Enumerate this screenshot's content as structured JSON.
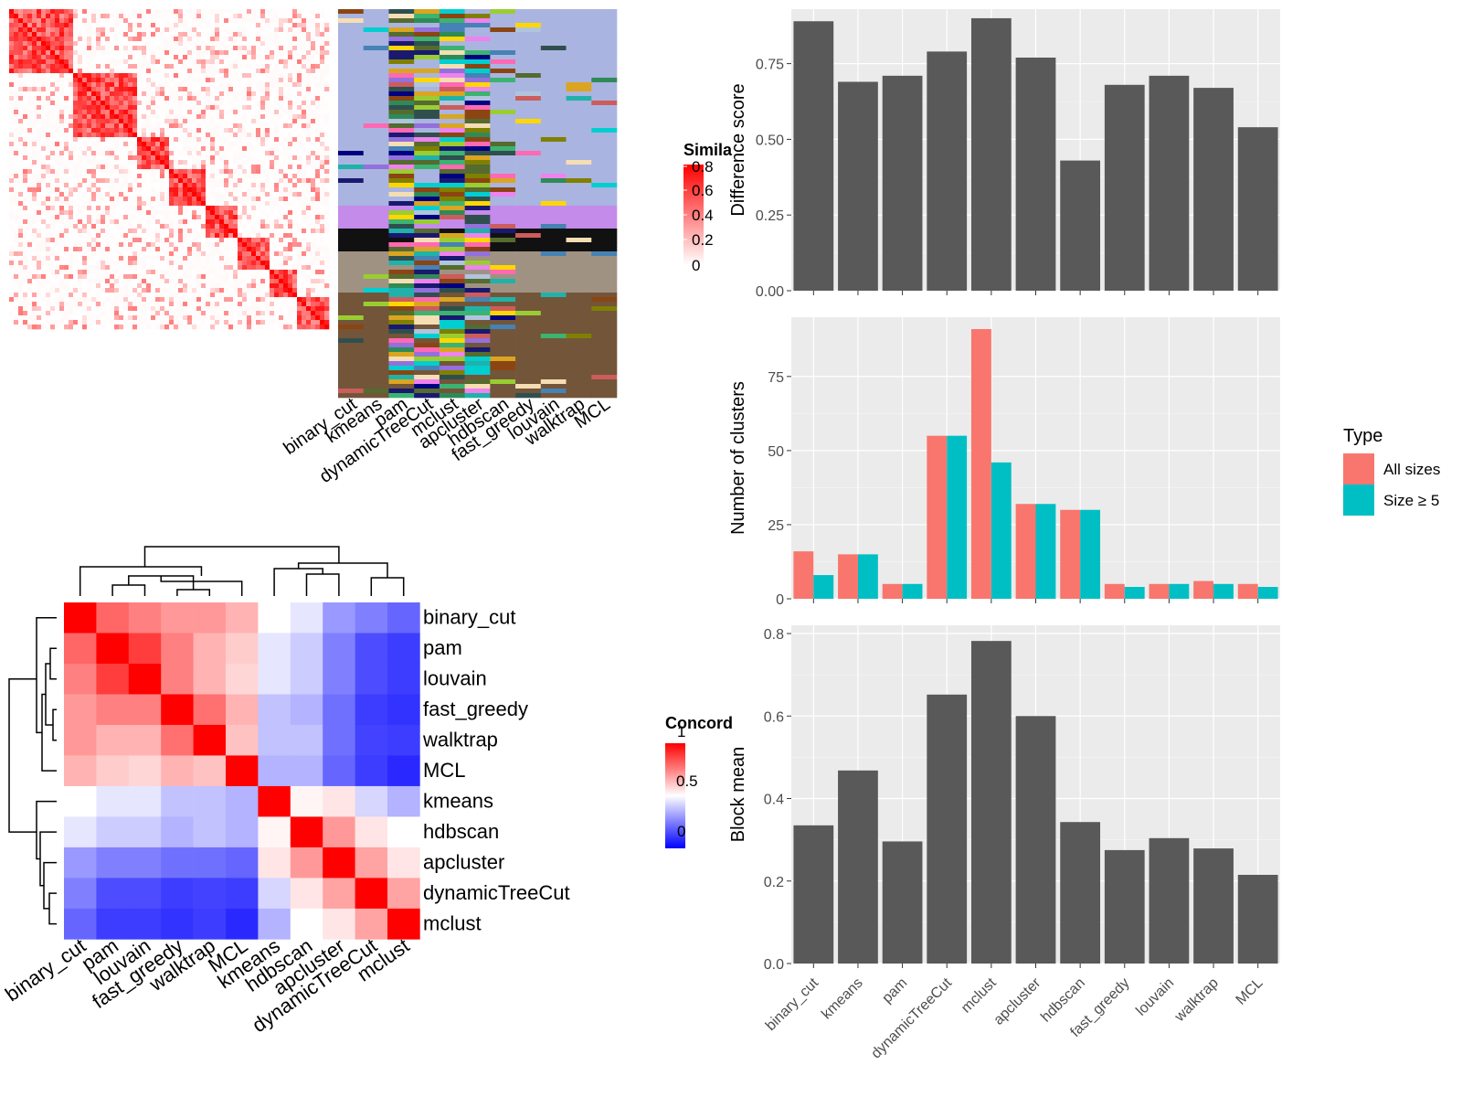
{
  "methods_order": [
    "binary_cut",
    "kmeans",
    "pam",
    "dynamicTreeCut",
    "mclust",
    "apcluster",
    "hdbscan",
    "fast_greedy",
    "louvain",
    "walktrap",
    "MCL"
  ],
  "colors": {
    "panel_bg": "#EBEBEB",
    "grid": "#FFFFFF",
    "bar_dark": "#595959",
    "all_sizes": "#F8766D",
    "size_ge5": "#00BFC4",
    "heat_high": "#FF0000",
    "heat_mid": "#FFFFFF",
    "heat_low": "#0000FF"
  },
  "legends": {
    "similarity": {
      "title": "Simila",
      "labels": [
        "0.8",
        "0.6",
        "0.4",
        "0.2",
        "0"
      ]
    },
    "concordance": {
      "title": "Concord",
      "labels": [
        "1",
        "0.5",
        "0"
      ]
    },
    "type": {
      "title": "Type",
      "items": [
        "All sizes",
        "Size ≥ 5"
      ]
    }
  },
  "chart_data": [
    {
      "type": "heatmap",
      "title": "",
      "name": "similarity-matrix",
      "ylim": [
        0,
        0.8
      ],
      "note_blocks": "diagonal block structure",
      "legend_title": "Simila"
    },
    {
      "type": "heatmap",
      "name": "clustering-assignments",
      "columns": [
        "binary_cut",
        "kmeans",
        "pam",
        "dynamicTreeCut",
        "mclust",
        "apcluster",
        "hdbscan",
        "fast_greedy",
        "louvain",
        "walktrap",
        "MCL"
      ]
    },
    {
      "type": "heatmap",
      "name": "concordance-matrix",
      "legend_title": "Concord",
      "rows": [
        "binary_cut",
        "pam",
        "louvain",
        "fast_greedy",
        "walktrap",
        "MCL",
        "kmeans",
        "hdbscan",
        "apcluster",
        "dynamicTreeCut",
        "mclust"
      ],
      "columns": [
        "binary_cut",
        "pam",
        "louvain",
        "fast_greedy",
        "walktrap",
        "MCL",
        "kmeans",
        "hdbscan",
        "apcluster",
        "dynamicTreeCut",
        "mclust"
      ],
      "values": [
        [
          1.0,
          0.8,
          0.75,
          0.7,
          0.7,
          0.65,
          0.5,
          0.45,
          0.3,
          0.25,
          0.2
        ],
        [
          0.8,
          1.0,
          0.88,
          0.75,
          0.65,
          0.6,
          0.45,
          0.4,
          0.25,
          0.15,
          0.12
        ],
        [
          0.75,
          0.88,
          1.0,
          0.75,
          0.65,
          0.58,
          0.45,
          0.4,
          0.25,
          0.15,
          0.12
        ],
        [
          0.7,
          0.75,
          0.75,
          1.0,
          0.78,
          0.65,
          0.38,
          0.35,
          0.22,
          0.12,
          0.1
        ],
        [
          0.7,
          0.65,
          0.65,
          0.78,
          1.0,
          0.62,
          0.38,
          0.38,
          0.22,
          0.13,
          0.12
        ],
        [
          0.65,
          0.6,
          0.58,
          0.65,
          0.62,
          1.0,
          0.35,
          0.35,
          0.2,
          0.12,
          0.08
        ],
        [
          0.5,
          0.45,
          0.45,
          0.38,
          0.38,
          0.35,
          1.0,
          0.52,
          0.55,
          0.42,
          0.35
        ],
        [
          0.45,
          0.4,
          0.4,
          0.35,
          0.38,
          0.35,
          0.52,
          1.0,
          0.7,
          0.55,
          0.5
        ],
        [
          0.3,
          0.25,
          0.25,
          0.22,
          0.22,
          0.2,
          0.55,
          0.7,
          1.0,
          0.68,
          0.55
        ],
        [
          0.25,
          0.15,
          0.15,
          0.12,
          0.13,
          0.12,
          0.42,
          0.55,
          0.68,
          1.0,
          0.68
        ],
        [
          0.2,
          0.12,
          0.12,
          0.1,
          0.12,
          0.08,
          0.35,
          0.5,
          0.55,
          0.68,
          1.0
        ]
      ],
      "zlim": [
        0,
        1
      ]
    },
    {
      "type": "bar",
      "name": "difference-score",
      "categories": [
        "binary_cut",
        "kmeans",
        "pam",
        "dynamicTreeCut",
        "mclust",
        "apcluster",
        "hdbscan",
        "fast_greedy",
        "louvain",
        "walktrap",
        "MCL"
      ],
      "values": [
        0.89,
        0.69,
        0.71,
        0.79,
        0.9,
        0.77,
        0.43,
        0.68,
        0.71,
        0.67,
        0.54
      ],
      "ylabel": "Difference score",
      "ylim": [
        0,
        0.93
      ],
      "yticks": [
        "0.00",
        "0.25",
        "0.50",
        "0.75"
      ],
      "grid": true
    },
    {
      "type": "bar",
      "name": "number-of-clusters",
      "categories": [
        "binary_cut",
        "kmeans",
        "pam",
        "dynamicTreeCut",
        "mclust",
        "apcluster",
        "hdbscan",
        "fast_greedy",
        "louvain",
        "walktrap",
        "MCL"
      ],
      "series": [
        {
          "name": "All sizes",
          "values": [
            16,
            15,
            5,
            55,
            91,
            32,
            30,
            5,
            5,
            6,
            5
          ]
        },
        {
          "name": "Size ≥ 5",
          "values": [
            8,
            15,
            5,
            55,
            46,
            32,
            30,
            4,
            5,
            5,
            4
          ]
        }
      ],
      "ylabel": "Number of clusters",
      "ylim": [
        0,
        95
      ],
      "yticks": [
        "0",
        "25",
        "50",
        "75"
      ],
      "legend": "right",
      "grid": true
    },
    {
      "type": "bar",
      "name": "block-mean",
      "categories": [
        "binary_cut",
        "kmeans",
        "pam",
        "dynamicTreeCut",
        "mclust",
        "apcluster",
        "hdbscan",
        "fast_greedy",
        "louvain",
        "walktrap",
        "MCL"
      ],
      "values": [
        0.335,
        0.468,
        0.296,
        0.652,
        0.782,
        0.6,
        0.343,
        0.275,
        0.304,
        0.279,
        0.215
      ],
      "ylabel": "Block mean",
      "ylim": [
        0,
        0.82
      ],
      "yticks": [
        "0.0",
        "0.2",
        "0.4",
        "0.6",
        "0.8"
      ],
      "grid": true
    }
  ]
}
